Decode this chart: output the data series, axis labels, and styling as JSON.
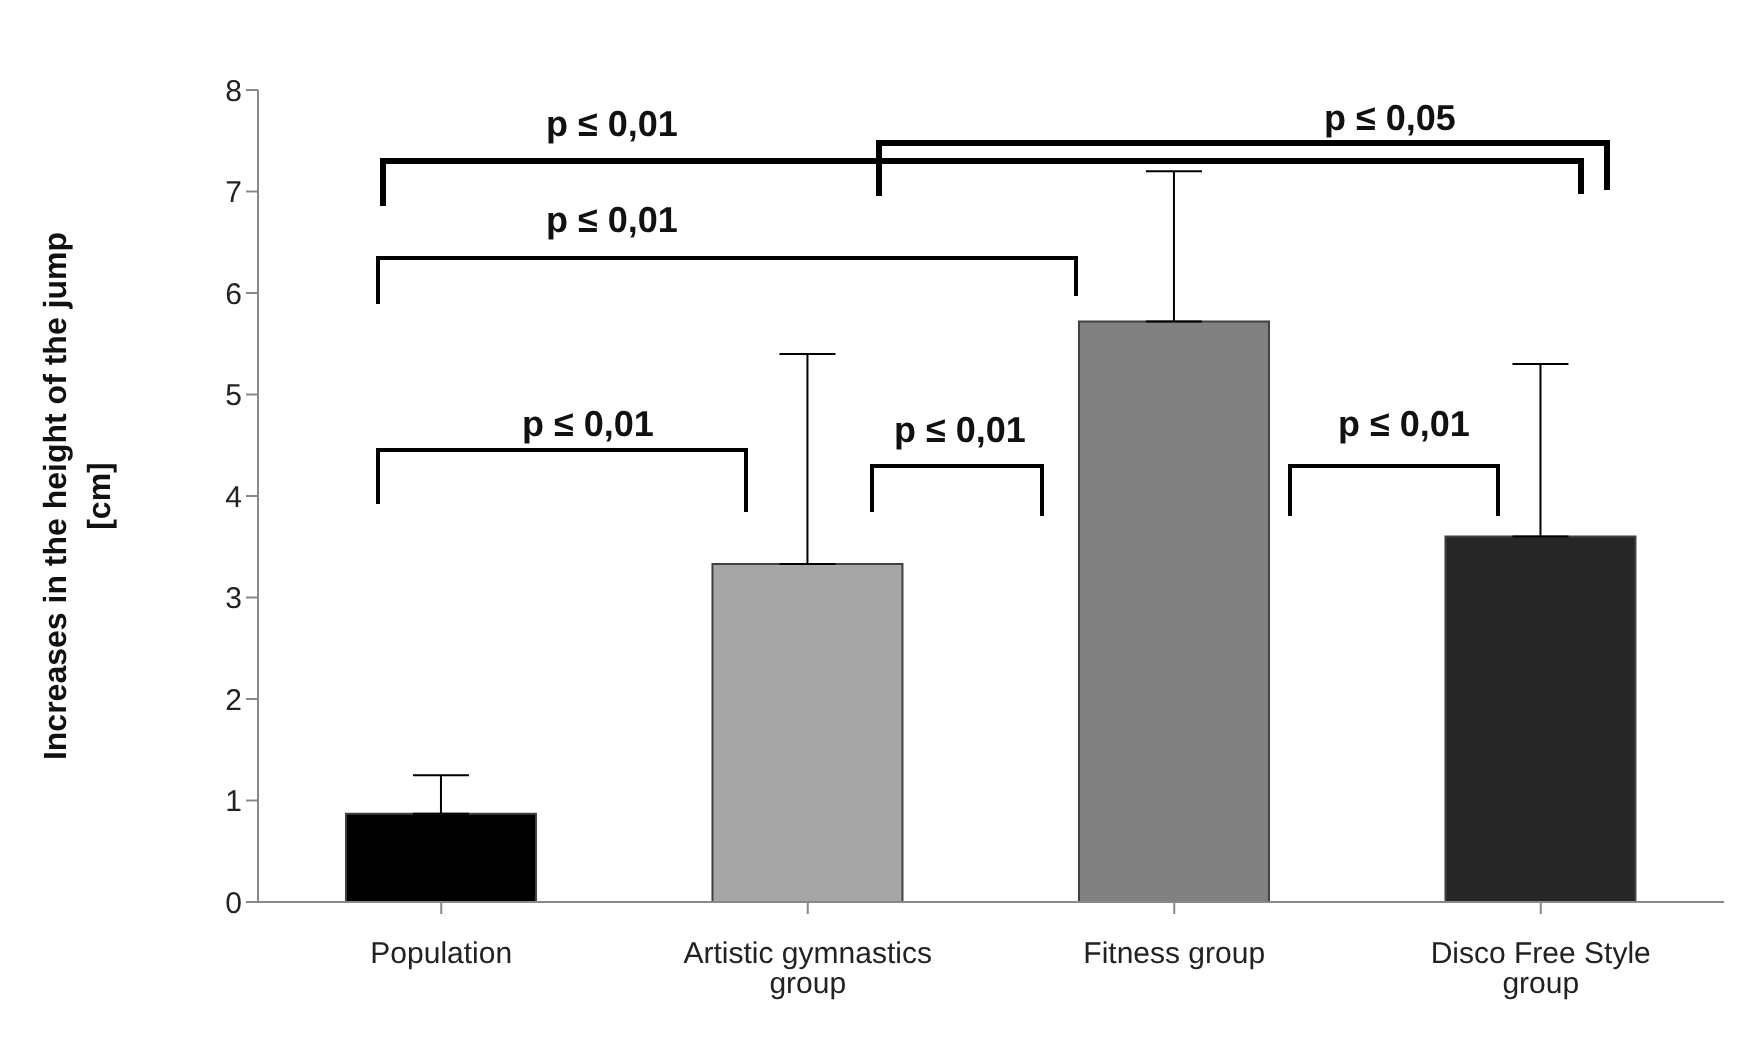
{
  "chart_data": {
    "type": "bar",
    "ylabel": "Increases  in the height of the jump [cm]",
    "categories": [
      "Population",
      "Artistic gymnastics group",
      "Fitness group",
      "Disco Free Style group"
    ],
    "values": [
      0.87,
      3.33,
      5.72,
      3.6
    ],
    "colors": [
      "#000000",
      "#a6a6a6",
      "#808080",
      "#262626"
    ],
    "errors": [
      [
        0.87,
        1.25
      ],
      [
        3.33,
        5.4
      ],
      [
        5.72,
        7.2
      ],
      [
        3.6,
        5.3
      ]
    ],
    "ylim": [
      0,
      8
    ],
    "yticks": [
      0,
      1,
      2,
      3,
      4,
      5,
      6,
      7,
      8
    ],
    "grid": false,
    "legend": false,
    "annotations": [
      "p ≤ 0,01",
      "p ≤ 0,05",
      "p ≤ 0,01",
      "p ≤ 0,01",
      "p ≤ 0,01",
      "p ≤ 0,01"
    ]
  }
}
